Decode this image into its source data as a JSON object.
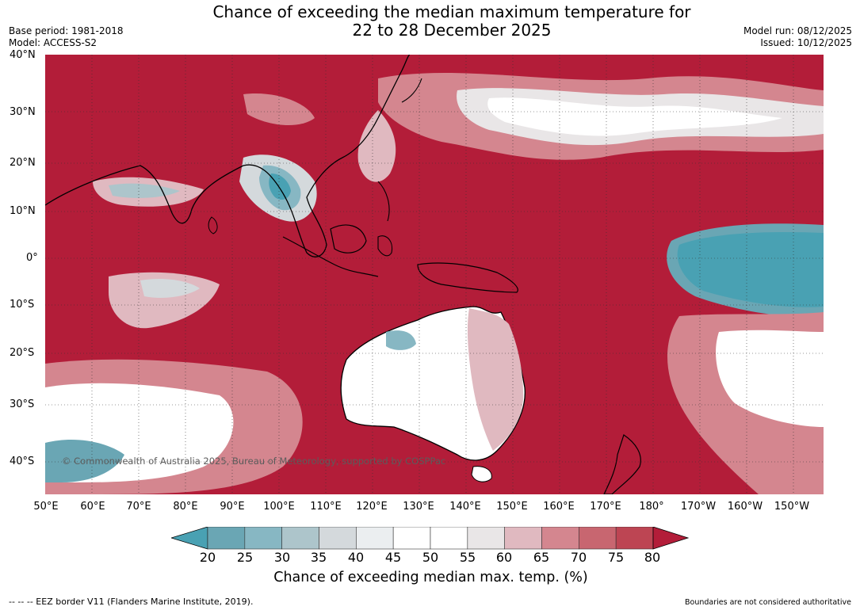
{
  "title": {
    "line1": "Chance of exceeding the median maximum temperature for",
    "line2": "22 to 28 December 2025"
  },
  "meta_left": {
    "base_period": "Base period: 1981-2018",
    "model": "Model: ACCESS-S2"
  },
  "meta_right": {
    "model_run": "Model run: 08/12/2025",
    "issued": "Issued: 10/12/2025"
  },
  "map": {
    "lat_labels": [
      "40°N",
      "30°N",
      "20°N",
      "10°N",
      "0°",
      "10°S",
      "20°S",
      "30°S",
      "40°S"
    ],
    "lon_labels": [
      "50°E",
      "60°E",
      "70°E",
      "80°E",
      "90°E",
      "100°E",
      "110°E",
      "120°E",
      "130°E",
      "140°E",
      "150°E",
      "160°E",
      "170°E",
      "180°",
      "170°W",
      "160°W",
      "150°W"
    ],
    "copyright": "© Commonwealth of Australia 2025, Bureau of Meteorology, supported by COSPPac",
    "gridlines": "dotted",
    "background_color": "#b31d39"
  },
  "colorbar": {
    "ticks": [
      "20",
      "25",
      "30",
      "35",
      "40",
      "45",
      "50",
      "55",
      "60",
      "65",
      "70",
      "75",
      "80"
    ],
    "colors": [
      "#49a1b3",
      "#6aa6b4",
      "#87b7c3",
      "#adc5cb",
      "#d4d9dc",
      "#ebeef0",
      "#ffffff",
      "#ffffff",
      "#e9e6e7",
      "#e0b9c0",
      "#d4868f",
      "#c86670",
      "#bd4553",
      "#b31d39"
    ],
    "label": "Chance of exceeding median max. temp. (%)"
  },
  "footer": {
    "left": "--  --  -- EEZ border V11 (Flanders Marine Institute, 2019).",
    "right": "Boundaries are not considered authoritative"
  }
}
